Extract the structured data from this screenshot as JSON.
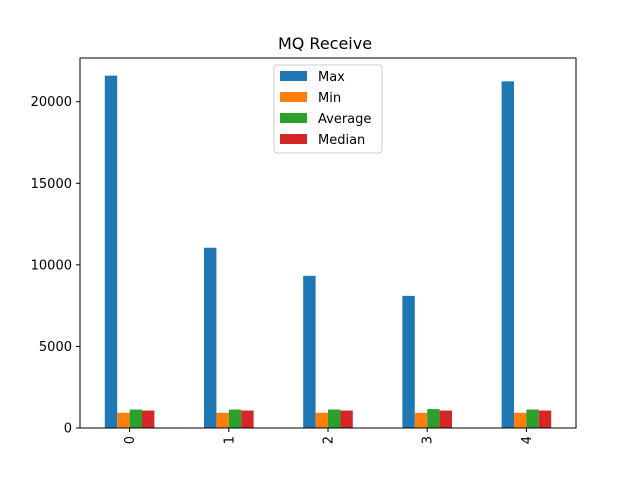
{
  "chart_data": {
    "type": "bar",
    "title": "MQ Receive",
    "xlabel": "",
    "ylabel": "",
    "categories": [
      "0",
      "1",
      "2",
      "3",
      "4"
    ],
    "series": [
      {
        "name": "Max",
        "color": "#1f77b4",
        "values": [
          21600,
          11050,
          9330,
          8100,
          21250
        ]
      },
      {
        "name": "Min",
        "color": "#ff7f0e",
        "values": [
          930,
          930,
          930,
          930,
          930
        ]
      },
      {
        "name": "Average",
        "color": "#2ca02c",
        "values": [
          1130,
          1130,
          1130,
          1160,
          1130
        ]
      },
      {
        "name": "Median",
        "color": "#d62728",
        "values": [
          1070,
          1070,
          1070,
          1070,
          1070
        ]
      }
    ],
    "ylim": [
      0,
      22680
    ],
    "yticks": [
      0,
      5000,
      10000,
      15000,
      20000
    ],
    "grid": false,
    "legend": "top-center"
  }
}
